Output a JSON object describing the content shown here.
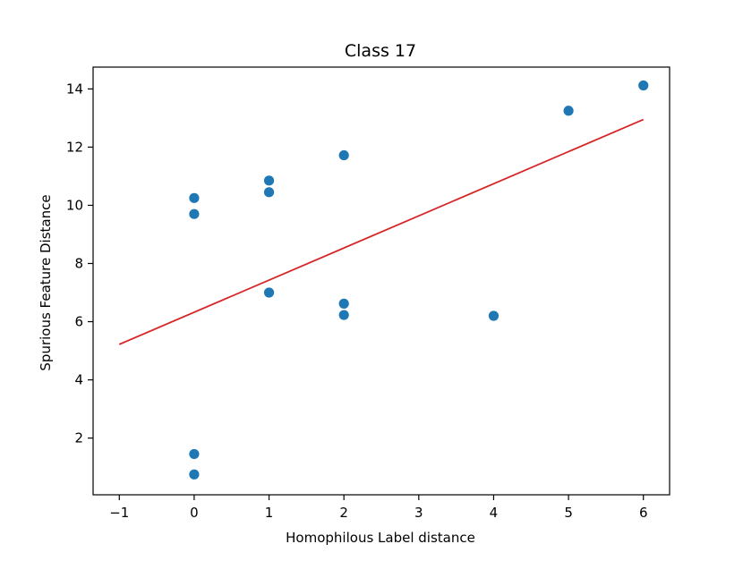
{
  "chart_data": {
    "type": "scatter",
    "title": "Class 17",
    "xlabel": "Homophilous Label distance",
    "ylabel": "Spurious Feature Distance",
    "xlim": [
      -1.35,
      6.35
    ],
    "ylim": [
      0.05,
      14.75
    ],
    "xticks": [
      -1,
      0,
      1,
      2,
      3,
      4,
      5,
      6
    ],
    "xtick_labels": [
      "−1",
      "0",
      "1",
      "2",
      "3",
      "4",
      "5",
      "6"
    ],
    "yticks": [
      2,
      4,
      6,
      8,
      10,
      12,
      14
    ],
    "ytick_labels": [
      "2",
      "4",
      "6",
      "8",
      "10",
      "12",
      "14"
    ],
    "grid": false,
    "series": [
      {
        "type": "scatter",
        "color": "#1f77b4",
        "points": [
          {
            "x": 0,
            "y": 10.25
          },
          {
            "x": 0,
            "y": 9.7
          },
          {
            "x": 0,
            "y": 1.45
          },
          {
            "x": 0,
            "y": 0.75
          },
          {
            "x": 1,
            "y": 10.85
          },
          {
            "x": 1,
            "y": 10.45
          },
          {
            "x": 1,
            "y": 7.0
          },
          {
            "x": 2,
            "y": 11.72
          },
          {
            "x": 2,
            "y": 6.62
          },
          {
            "x": 2,
            "y": 6.23
          },
          {
            "x": 4,
            "y": 6.2
          },
          {
            "x": 5,
            "y": 13.25
          },
          {
            "x": 6,
            "y": 14.12
          }
        ]
      },
      {
        "type": "line",
        "color": "#d62728",
        "points": [
          {
            "x": -1,
            "y": 5.22
          },
          {
            "x": 6,
            "y": 12.95
          }
        ]
      }
    ]
  }
}
